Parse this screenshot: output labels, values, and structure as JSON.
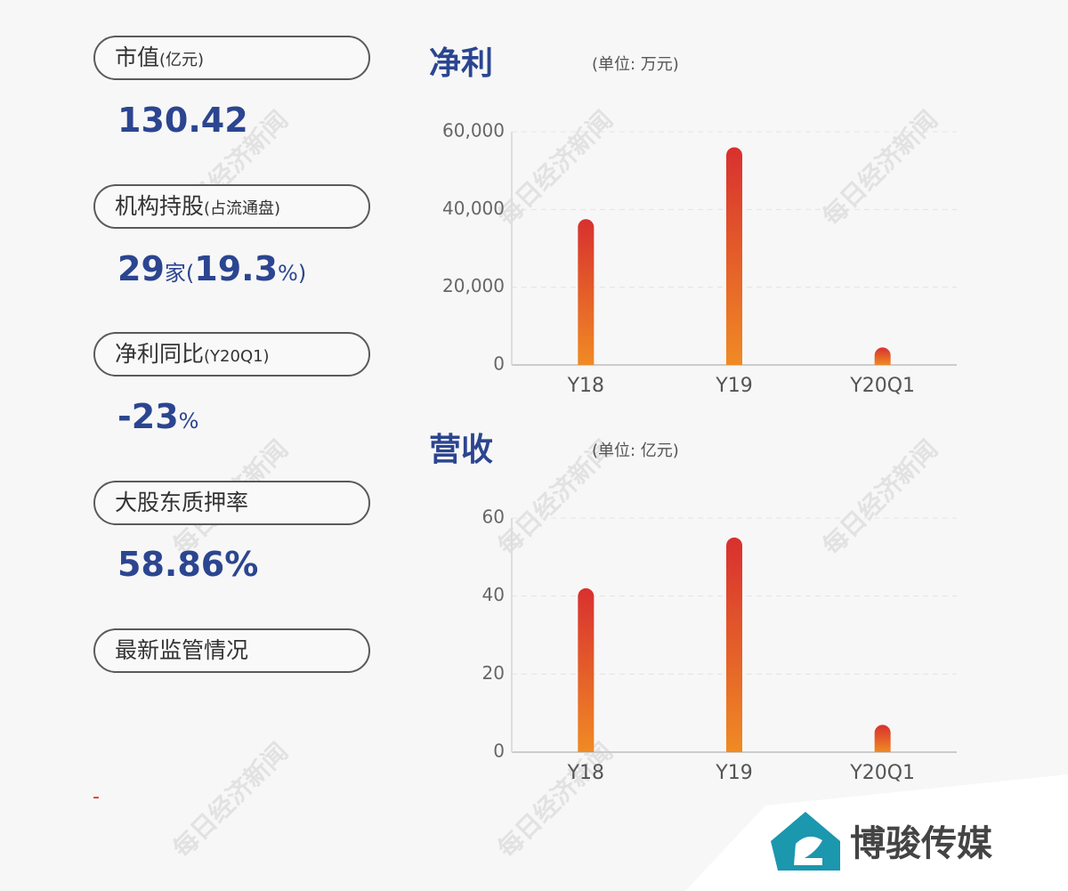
{
  "panel": {
    "items": [
      {
        "label": "市值",
        "sub": "(亿元)",
        "value": [
          "130.42"
        ]
      },
      {
        "label": "机构持股",
        "sub": "(占流通盘)",
        "value": [
          "29",
          "家(",
          "19.3",
          "%)"
        ]
      },
      {
        "label": "净利同比",
        "sub": "(Y20Q1)",
        "value": [
          "-23",
          "%"
        ]
      },
      {
        "label": "大股东质押率",
        "value": [
          "58.86%"
        ]
      },
      {
        "label": "最新监管情况"
      }
    ],
    "footnote": "-"
  },
  "watermark": "每日经济新闻",
  "logo": "博骏传媒",
  "chart_data": [
    {
      "type": "bar",
      "title": "净利",
      "unit": "(单位: 万元)",
      "categories": [
        "Y18",
        "Y19",
        "Y20Q1"
      ],
      "values": [
        37500,
        56000,
        4500
      ],
      "ylim": [
        0,
        60000
      ],
      "yticks": [
        0,
        {
          "value": 20000,
          "label": "20,000"
        },
        {
          "value": 40000,
          "label": "40,000"
        },
        {
          "value": 60000,
          "label": "60,000"
        }
      ],
      "grid": true
    },
    {
      "type": "bar",
      "title": "营收",
      "unit": "(单位: 亿元)",
      "categories": [
        "Y18",
        "Y19",
        "Y20Q1"
      ],
      "values": [
        42,
        55,
        7
      ],
      "ylim": [
        0,
        60
      ],
      "yticks": [
        0,
        20,
        40,
        60
      ],
      "grid": true
    }
  ]
}
